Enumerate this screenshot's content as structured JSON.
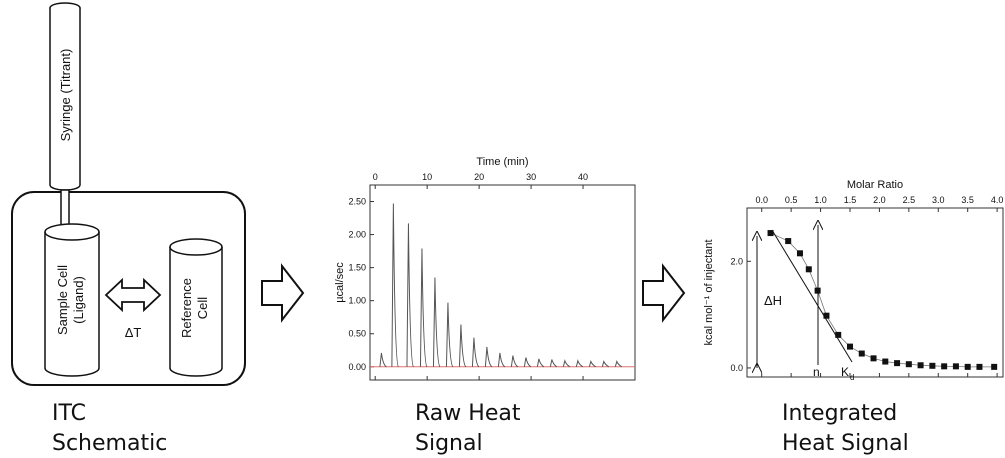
{
  "schematic": {
    "syringe": "Syringe (Titrant)",
    "sample_cell": [
      "Sample Cell",
      "(Ligand)"
    ],
    "delta_t": "ΔT",
    "reference_cell": [
      "Reference",
      "Cell"
    ]
  },
  "captions": [
    [
      "ITC",
      "Schematic"
    ],
    [
      "Raw Heat",
      "Signal"
    ],
    [
      "Integrated",
      "Heat Signal"
    ]
  ],
  "chart_data": [
    {
      "type": "spike",
      "x_label": "Time (min)",
      "y_label": "µcal/sec",
      "color": "#555555",
      "baseline_color": "#e07070",
      "x": [
        1.2,
        3.5,
        6.4,
        9,
        11.5,
        14,
        16.5,
        19,
        21.5,
        24,
        26.5,
        29,
        31.5,
        34,
        36.5,
        39,
        41.5,
        44,
        46.5
      ],
      "values": [
        0.21,
        2.47,
        2.17,
        1.79,
        1.35,
        0.97,
        0.64,
        0.44,
        0.3,
        0.21,
        0.17,
        0.14,
        0.12,
        0.11,
        0.09,
        0.09,
        0.08,
        0.08,
        0.08
      ],
      "xlim": [
        -1,
        50
      ],
      "xticks": [
        0,
        10,
        20,
        30,
        40
      ],
      "ylim": [
        -0.2,
        2.75
      ],
      "yticks": [
        {
          "value": 0,
          "label": "0.00"
        },
        {
          "value": 0.5,
          "label": "0.50"
        },
        {
          "value": 1,
          "label": "1.00"
        },
        {
          "value": 1.5,
          "label": "1.50"
        },
        {
          "value": 2,
          "label": "2.00"
        },
        {
          "value": 2.5,
          "label": "2.50"
        }
      ]
    },
    {
      "type": "scatter",
      "x_label": "Molar Ratio",
      "y_label": "kcal mol⁻¹ of injectant",
      "color": "#111111",
      "annotations": [
        "ΔH",
        "n",
        "K",
        "d"
      ],
      "x": [
        0.15,
        0.45,
        0.65,
        0.8,
        0.95,
        1.1,
        1.3,
        1.5,
        1.7,
        1.9,
        2.1,
        2.3,
        2.5,
        2.7,
        2.9,
        3.1,
        3.3,
        3.5,
        3.7,
        3.95
      ],
      "values": [
        2.53,
        2.38,
        2.15,
        1.85,
        1.45,
        0.98,
        0.62,
        0.4,
        0.27,
        0.18,
        0.12,
        0.09,
        0.07,
        0.05,
        0.04,
        0.03,
        0.03,
        0.02,
        0.02,
        0.02
      ],
      "xlim": [
        -0.25,
        4.1
      ],
      "xticks": [
        {
          "value": 0,
          "label": "0.0"
        },
        0.5,
        {
          "value": 1,
          "label": "1.0"
        },
        1.5,
        {
          "value": 2,
          "label": "2.0"
        },
        2.5,
        {
          "value": 3,
          "label": "3.0"
        },
        3.5,
        {
          "value": 4,
          "label": "4.0"
        }
      ],
      "ylim": [
        -0.17,
        3.0
      ],
      "yticks": [
        {
          "value": 0,
          "label": "0.0"
        },
        {
          "value": 2,
          "label": "2.0"
        }
      ]
    }
  ]
}
